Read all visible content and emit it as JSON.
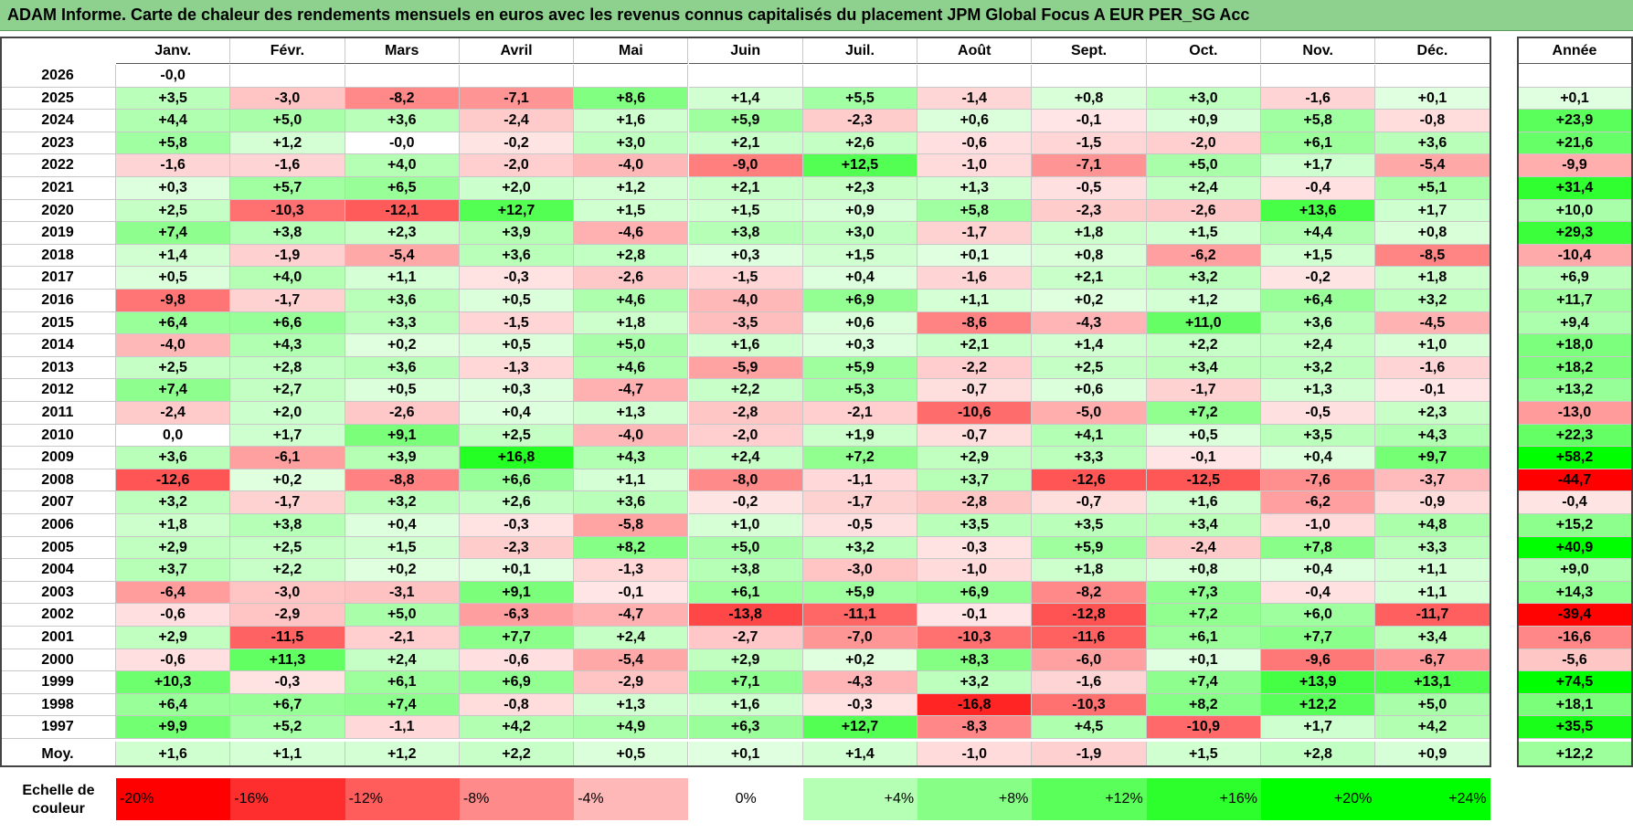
{
  "title": "ADAM Informe. Carte de chaleur des rendements mensuels en euros avec les revenus connus capitalisés du placement JPM Global Focus A EUR PER_SG Acc",
  "chart_data": {
    "type": "heatmap",
    "months": [
      "Janv.",
      "Févr.",
      "Mars",
      "Avril",
      "Mai",
      "Juin",
      "Juil.",
      "Août",
      "Sept.",
      "Oct.",
      "Nov.",
      "Déc."
    ],
    "year_header": "Année",
    "rows": [
      {
        "year": "2026",
        "values": [
          "-0,0",
          "",
          "",
          "",
          "",
          "",
          "",
          "",
          "",
          "",
          "",
          ""
        ],
        "annual": ""
      },
      {
        "year": "2025",
        "values": [
          "+3,5",
          "-3,0",
          "-8,2",
          "-7,1",
          "+8,6",
          "+1,4",
          "+5,5",
          "-1,4",
          "+0,8",
          "+3,0",
          "-1,6",
          "+0,1"
        ],
        "annual": "+0,1"
      },
      {
        "year": "2024",
        "values": [
          "+4,4",
          "+5,0",
          "+3,6",
          "-2,4",
          "+1,6",
          "+5,9",
          "-2,3",
          "+0,6",
          "-0,1",
          "+0,9",
          "+5,8",
          "-0,8"
        ],
        "annual": "+23,9"
      },
      {
        "year": "2023",
        "values": [
          "+5,8",
          "+1,2",
          "-0,0",
          "-0,2",
          "+3,0",
          "+2,1",
          "+2,6",
          "-0,6",
          "-1,5",
          "-2,0",
          "+6,1",
          "+3,6"
        ],
        "annual": "+21,6"
      },
      {
        "year": "2022",
        "values": [
          "-1,6",
          "-1,6",
          "+4,0",
          "-2,0",
          "-4,0",
          "-9,0",
          "+12,5",
          "-1,0",
          "-7,1",
          "+5,0",
          "+1,7",
          "-5,4"
        ],
        "annual": "-9,9"
      },
      {
        "year": "2021",
        "values": [
          "+0,3",
          "+5,7",
          "+6,5",
          "+2,0",
          "+1,2",
          "+2,1",
          "+2,3",
          "+1,3",
          "-0,5",
          "+2,4",
          "-0,4",
          "+5,1"
        ],
        "annual": "+31,4"
      },
      {
        "year": "2020",
        "values": [
          "+2,5",
          "-10,3",
          "-12,1",
          "+12,7",
          "+1,5",
          "+1,5",
          "+0,9",
          "+5,8",
          "-2,3",
          "-2,6",
          "+13,6",
          "+1,7"
        ],
        "annual": "+10,0"
      },
      {
        "year": "2019",
        "values": [
          "+7,4",
          "+3,8",
          "+2,3",
          "+3,9",
          "-4,6",
          "+3,8",
          "+3,0",
          "-1,7",
          "+1,8",
          "+1,5",
          "+4,4",
          "+0,8"
        ],
        "annual": "+29,3"
      },
      {
        "year": "2018",
        "values": [
          "+1,4",
          "-1,9",
          "-5,4",
          "+3,6",
          "+2,8",
          "+0,3",
          "+1,5",
          "+0,1",
          "+0,8",
          "-6,2",
          "+1,5",
          "-8,5"
        ],
        "annual": "-10,4"
      },
      {
        "year": "2017",
        "values": [
          "+0,5",
          "+4,0",
          "+1,1",
          "-0,3",
          "-2,6",
          "-1,5",
          "+0,4",
          "-1,6",
          "+2,1",
          "+3,2",
          "-0,2",
          "+1,8"
        ],
        "annual": "+6,9"
      },
      {
        "year": "2016",
        "values": [
          "-9,8",
          "-1,7",
          "+3,6",
          "+0,5",
          "+4,6",
          "-4,0",
          "+6,9",
          "+1,1",
          "+0,2",
          "+1,2",
          "+6,4",
          "+3,2"
        ],
        "annual": "+11,7"
      },
      {
        "year": "2015",
        "values": [
          "+6,4",
          "+6,6",
          "+3,3",
          "-1,5",
          "+1,8",
          "-3,5",
          "+0,6",
          "-8,6",
          "-4,3",
          "+11,0",
          "+3,6",
          "-4,5"
        ],
        "annual": "+9,4"
      },
      {
        "year": "2014",
        "values": [
          "-4,0",
          "+4,3",
          "+0,2",
          "+0,5",
          "+5,0",
          "+1,6",
          "+0,3",
          "+2,1",
          "+1,4",
          "+2,2",
          "+2,4",
          "+1,0"
        ],
        "annual": "+18,0"
      },
      {
        "year": "2013",
        "values": [
          "+2,5",
          "+2,8",
          "+3,6",
          "-1,3",
          "+4,6",
          "-5,9",
          "+5,9",
          "-2,2",
          "+2,5",
          "+3,4",
          "+3,2",
          "-1,6"
        ],
        "annual": "+18,2"
      },
      {
        "year": "2012",
        "values": [
          "+7,4",
          "+2,7",
          "+0,5",
          "+0,3",
          "-4,7",
          "+2,2",
          "+5,3",
          "-0,7",
          "+0,6",
          "-1,7",
          "+1,3",
          "-0,1"
        ],
        "annual": "+13,2"
      },
      {
        "year": "2011",
        "values": [
          "-2,4",
          "+2,0",
          "-2,6",
          "+0,4",
          "+1,3",
          "-2,8",
          "-2,1",
          "-10,6",
          "-5,0",
          "+7,2",
          "-0,5",
          "+2,3"
        ],
        "annual": "-13,0"
      },
      {
        "year": "2010",
        "values": [
          "0,0",
          "+1,7",
          "+9,1",
          "+2,5",
          "-4,0",
          "-2,0",
          "+1,9",
          "-0,7",
          "+4,1",
          "+0,5",
          "+3,5",
          "+4,3"
        ],
        "annual": "+22,3"
      },
      {
        "year": "2009",
        "values": [
          "+3,6",
          "-6,1",
          "+3,9",
          "+16,8",
          "+4,3",
          "+2,4",
          "+7,2",
          "+2,9",
          "+3,3",
          "-0,1",
          "+0,4",
          "+9,7"
        ],
        "annual": "+58,2"
      },
      {
        "year": "2008",
        "values": [
          "-12,6",
          "+0,2",
          "-8,8",
          "+6,6",
          "+1,1",
          "-8,0",
          "-1,1",
          "+3,7",
          "-12,6",
          "-12,5",
          "-7,6",
          "-3,7"
        ],
        "annual": "-44,7"
      },
      {
        "year": "2007",
        "values": [
          "+3,2",
          "-1,7",
          "+3,2",
          "+2,6",
          "+3,6",
          "-0,2",
          "-1,7",
          "-2,8",
          "-0,7",
          "+1,6",
          "-6,2",
          "-0,9"
        ],
        "annual": "-0,4"
      },
      {
        "year": "2006",
        "values": [
          "+1,8",
          "+3,8",
          "+0,4",
          "-0,3",
          "-5,8",
          "+1,0",
          "-0,5",
          "+3,5",
          "+3,5",
          "+3,4",
          "-1,0",
          "+4,8"
        ],
        "annual": "+15,2"
      },
      {
        "year": "2005",
        "values": [
          "+2,9",
          "+2,5",
          "+1,5",
          "-2,3",
          "+8,2",
          "+5,0",
          "+3,2",
          "-0,3",
          "+5,9",
          "-2,4",
          "+7,8",
          "+3,3"
        ],
        "annual": "+40,9"
      },
      {
        "year": "2004",
        "values": [
          "+3,7",
          "+2,2",
          "+0,2",
          "+0,1",
          "-1,3",
          "+3,8",
          "-3,0",
          "-1,0",
          "+1,8",
          "+0,8",
          "+0,4",
          "+1,1"
        ],
        "annual": "+9,0"
      },
      {
        "year": "2003",
        "values": [
          "-6,4",
          "-3,0",
          "-3,1",
          "+9,1",
          "-0,1",
          "+6,1",
          "+5,9",
          "+6,9",
          "-8,2",
          "+7,3",
          "-0,4",
          "+1,1"
        ],
        "annual": "+14,3"
      },
      {
        "year": "2002",
        "values": [
          "-0,6",
          "-2,9",
          "+5,0",
          "-6,3",
          "-4,7",
          "-13,8",
          "-11,1",
          "-0,1",
          "-12,8",
          "+7,2",
          "+6,0",
          "-11,7"
        ],
        "annual": "-39,4"
      },
      {
        "year": "2001",
        "values": [
          "+2,9",
          "-11,5",
          "-2,1",
          "+7,7",
          "+2,4",
          "-2,7",
          "-7,0",
          "-10,3",
          "-11,6",
          "+6,1",
          "+7,7",
          "+3,4"
        ],
        "annual": "-16,6"
      },
      {
        "year": "2000",
        "values": [
          "-0,6",
          "+11,3",
          "+2,4",
          "-0,6",
          "-5,4",
          "+2,9",
          "+0,2",
          "+8,3",
          "-6,0",
          "+0,1",
          "-9,6",
          "-6,7"
        ],
        "annual": "-5,6"
      },
      {
        "year": "1999",
        "values": [
          "+10,3",
          "-0,3",
          "+6,1",
          "+6,9",
          "-2,9",
          "+7,1",
          "-4,3",
          "+3,2",
          "-1,6",
          "+7,4",
          "+13,9",
          "+13,1"
        ],
        "annual": "+74,5"
      },
      {
        "year": "1998",
        "values": [
          "+6,4",
          "+6,7",
          "+7,4",
          "-0,8",
          "+1,3",
          "+1,6",
          "-0,3",
          "-16,8",
          "-10,3",
          "+8,2",
          "+12,2",
          "+5,0"
        ],
        "annual": "+18,1"
      },
      {
        "year": "1997",
        "values": [
          "+9,9",
          "+5,2",
          "-1,1",
          "+4,2",
          "+4,9",
          "+6,3",
          "+12,7",
          "-8,3",
          "+4,5",
          "-10,9",
          "+1,7",
          "+4,2"
        ],
        "annual": "+35,5"
      }
    ],
    "average": {
      "label": "Moy.",
      "values": [
        "+1,6",
        "+1,1",
        "+1,2",
        "+2,2",
        "+0,5",
        "+0,1",
        "+1,4",
        "-1,0",
        "-1,9",
        "+1,5",
        "+2,8",
        "+0,9"
      ],
      "annual": "+12,2"
    },
    "legend": {
      "label": "Echelle de couleur",
      "steps": [
        "-20%",
        "-16%",
        "-12%",
        "-8%",
        "-4%",
        "0%",
        "+4%",
        "+8%",
        "+12%",
        "+16%",
        "+20%",
        "+24%"
      ]
    },
    "colors": {
      "negative": "#ff0000",
      "neutral": "#ffffff",
      "positive": "#00ff00",
      "title_bar": "#8ed08e"
    }
  }
}
